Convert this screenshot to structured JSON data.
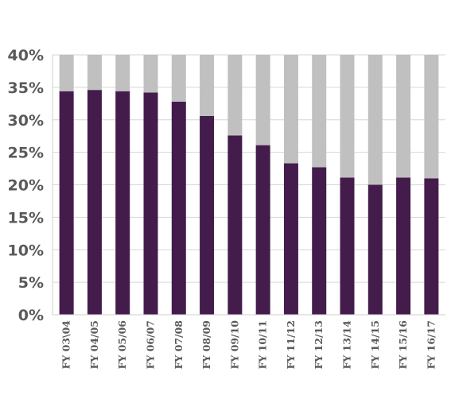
{
  "chart_data": {
    "type": "bar",
    "stacked": true,
    "categories": [
      "FY 03\\04",
      "FY 04/05",
      "FY 05/06",
      "FY 06/07",
      "FY 07/08",
      "FY 08/09",
      "FY 09/10",
      "FY 10/11",
      "FY 11/12",
      "FY 12/13",
      "FY 13/14",
      "FY 14/15",
      "FY 15/16",
      "FY 16/17"
    ],
    "series": [
      {
        "color": "#441c4c",
        "values": [
          34.4,
          34.6,
          34.4,
          34.2,
          32.8,
          30.6,
          27.6,
          26.1,
          23.3,
          22.7,
          21.1,
          20.0,
          21.1,
          21.0
        ]
      },
      {
        "color": "#c0c0c0",
        "values": [
          5.6,
          5.4,
          5.6,
          5.8,
          7.2,
          9.4,
          12.4,
          13.9,
          16.7,
          17.3,
          18.9,
          20.0,
          18.9,
          19.0
        ]
      }
    ],
    "yticks": [
      "0%",
      "5%",
      "10%",
      "15%",
      "20%",
      "25%",
      "30%",
      "35%",
      "40%"
    ],
    "ylim": [
      0,
      40
    ],
    "grid": true,
    "title": "",
    "xlabel": "",
    "ylabel": ""
  }
}
